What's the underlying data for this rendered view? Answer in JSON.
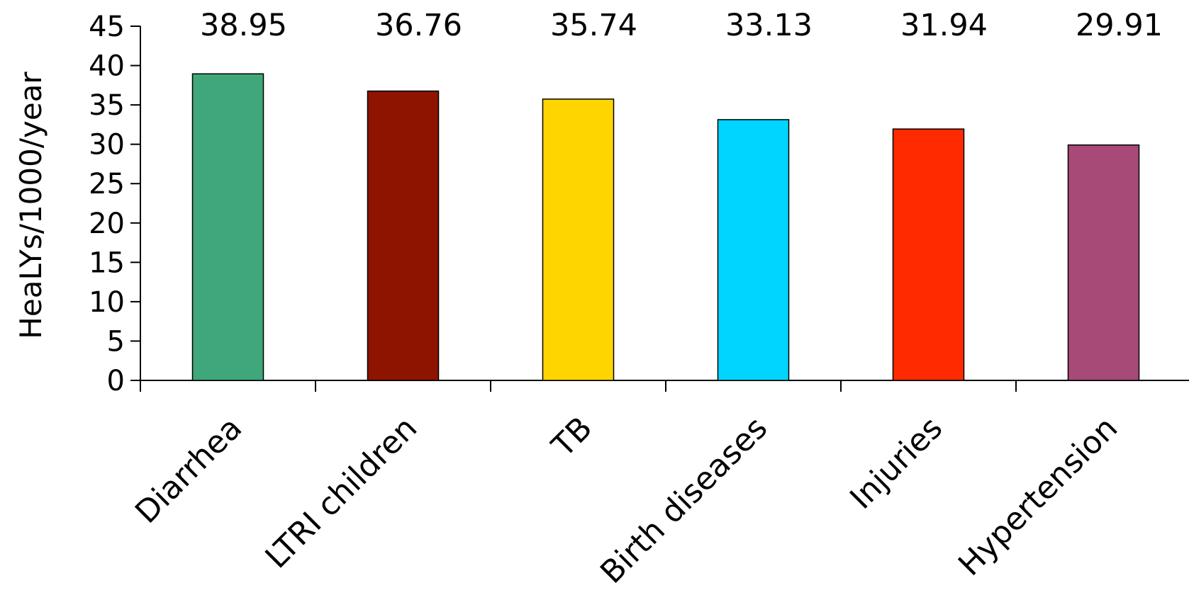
{
  "chart_data": {
    "type": "bar",
    "title": "",
    "xlabel": "",
    "ylabel": "HeaLYs/1000/year",
    "ylim": [
      0,
      45
    ],
    "yticks": [
      0,
      5,
      10,
      15,
      20,
      25,
      30,
      35,
      40,
      45
    ],
    "grid": false,
    "legend": "none",
    "categories": [
      "Diarrhea",
      "LTRI children",
      "TB",
      "Birth diseases",
      "Injuries",
      "Hypertension"
    ],
    "values": [
      38.95,
      36.76,
      35.74,
      33.13,
      31.94,
      29.91
    ],
    "value_labels": [
      "38.95",
      "36.76",
      "35.74",
      "33.13",
      "31.94",
      "29.91"
    ],
    "colors": [
      "#3fa77a",
      "#8e1400",
      "#ffd500",
      "#00d5ff",
      "#ff2a00",
      "#a84a77"
    ]
  }
}
